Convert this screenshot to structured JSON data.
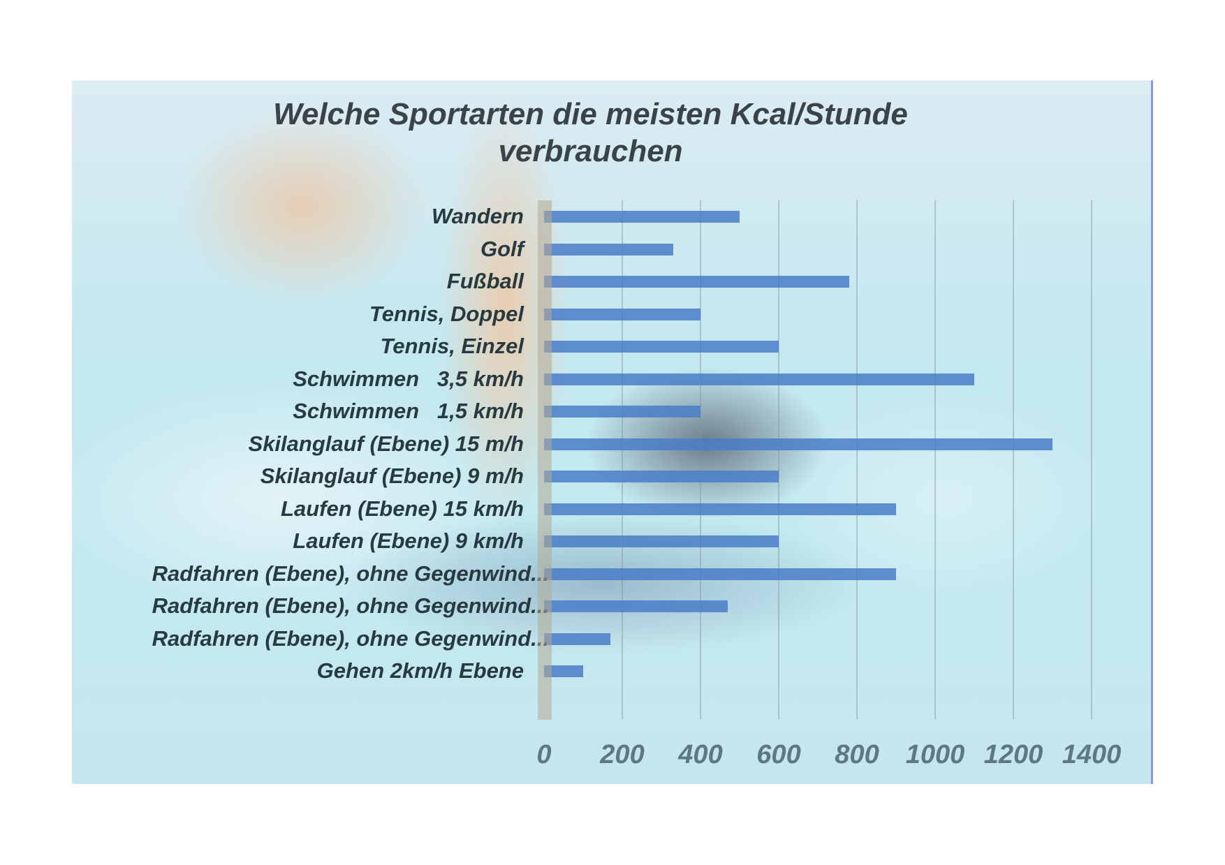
{
  "chart_data": {
    "type": "bar",
    "orientation": "horizontal",
    "title": "Welche Sportarten die meisten Kcal/Stunde verbrauchen",
    "title_lines": [
      "Welche Sportarten die meisten Kcal/Stunde",
      "verbrauchen"
    ],
    "xlabel": "",
    "ylabel": "",
    "xlim": [
      0,
      1400
    ],
    "grid": true,
    "legend": null,
    "x_ticks": [
      "0",
      "200",
      "400",
      "600",
      "800",
      "1000",
      "1200",
      "1400"
    ],
    "categories": [
      "Wandern",
      "Golf",
      "Fußball",
      "Tennis, Doppel",
      "Tennis, Einzel",
      "Schwimmen   3,5 km/h",
      "Schwimmen   1,5 km/h",
      "Skilanglauf (Ebene) 15 m/h",
      "Skilanglauf (Ebene) 9 m/h",
      "Laufen (Ebene) 15 km/h",
      "Laufen (Ebene) 9 km/h",
      "Radfahren (Ebene), ohne Gegenwind...",
      "Radfahren (Ebene), ohne Gegenwind...",
      "Radfahren (Ebene), ohne Gegenwind...",
      "Gehen 2km/h Ebene"
    ],
    "values": [
      500,
      330,
      780,
      400,
      600,
      1100,
      400,
      1300,
      600,
      900,
      600,
      900,
      470,
      170,
      100
    ],
    "bar_color": "#4a7cc8"
  }
}
